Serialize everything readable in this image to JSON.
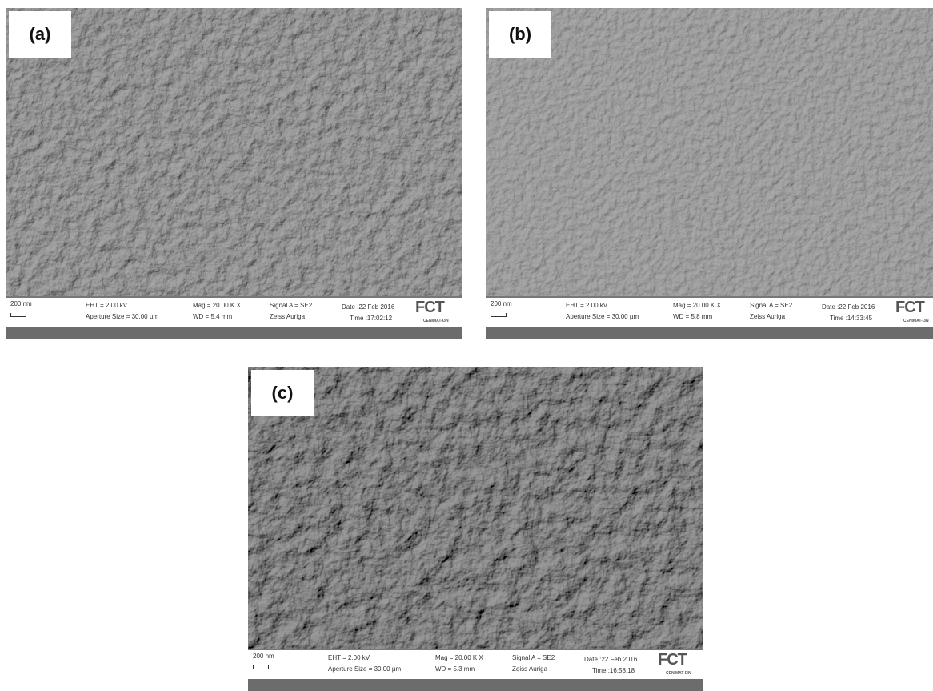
{
  "panels": [
    {
      "label": "(a)",
      "scale_bar": "200 nm",
      "eht": "EHT = 2.00 kV",
      "aperture": "Aperture Size = 30.00 µm",
      "mag": "Mag = 20.00 K X",
      "wd": "WD = 5.4 mm",
      "signal": "Signal A = SE2",
      "instrument": "Zeiss Auriga",
      "date": "Date :22 Feb 2016",
      "time": "Time :17:02:12",
      "logo": "FCT",
      "logo_sub": "CENIMAT-I3N"
    },
    {
      "label": "(b)",
      "scale_bar": "200 nm",
      "eht": "EHT = 2.00 kV",
      "aperture": "Aperture Size = 30.00 µm",
      "mag": "Mag = 20.00 K X",
      "wd": "WD = 5.8 mm",
      "signal": "Signal A = SE2",
      "instrument": "Zeiss Auriga",
      "date": "Date :22 Feb 2016",
      "time": "Time :14:33:45",
      "logo": "FCT",
      "logo_sub": "CENIMAT-I3N"
    },
    {
      "label": "(c)",
      "scale_bar": "200 nm",
      "eht": "EHT = 2.00 kV",
      "aperture": "Aperture Size = 30.00 µm",
      "mag": "Mag = 20.00 K X",
      "wd": "WD = 5.3 mm",
      "signal": "Signal A = SE2",
      "instrument": "Zeiss Auriga",
      "date": "Date :22 Feb 2016",
      "time": "Time :16:58:18",
      "logo": "FCT",
      "logo_sub": "CENIMAT-I3N"
    }
  ]
}
